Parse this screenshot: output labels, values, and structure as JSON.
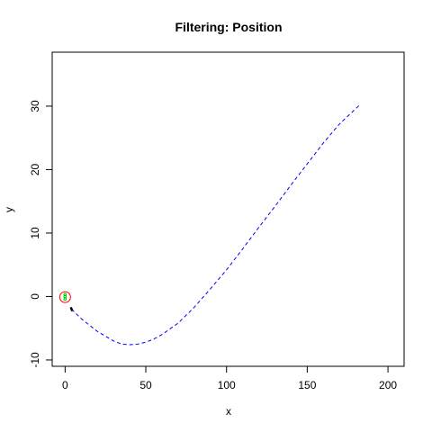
{
  "chart_data": {
    "type": "line",
    "title": "Filtering: Position",
    "xlabel": "x",
    "ylabel": "y",
    "xlim": [
      -8,
      210
    ],
    "ylim": [
      -11,
      38.5
    ],
    "xticks": [
      0,
      50,
      100,
      150,
      200
    ],
    "yticks": [
      -10,
      0,
      10,
      20,
      30
    ],
    "grid": false,
    "legend": "none",
    "series": [
      {
        "style": "dashed",
        "color": "#0000ff",
        "x": [
          4,
          10,
          20,
          30,
          35,
          40,
          45,
          50,
          55,
          60,
          70,
          80,
          90,
          100,
          110,
          120,
          130,
          140,
          150,
          160,
          170,
          183
        ],
        "y": [
          -2,
          -3.5,
          -5.5,
          -7,
          -7.5,
          -7.6,
          -7.5,
          -7.2,
          -6.7,
          -6,
          -4.2,
          -1.7,
          1.2,
          4.2,
          7.5,
          10.9,
          14.2,
          17.6,
          20.9,
          24.2,
          27.2,
          30.3
        ]
      },
      {
        "style": "solid",
        "color": "#000000",
        "x": [
          3.5,
          4.5
        ],
        "y": [
          -1.7,
          -2.3
        ]
      },
      {
        "style": "circle",
        "color": "#ff0000",
        "x": [
          0
        ],
        "y": [
          -0.1
        ]
      },
      {
        "style": "points",
        "color": "#00cc00",
        "x": [
          0,
          0,
          0
        ],
        "y": [
          0.3,
          0,
          -0.4
        ]
      }
    ]
  }
}
